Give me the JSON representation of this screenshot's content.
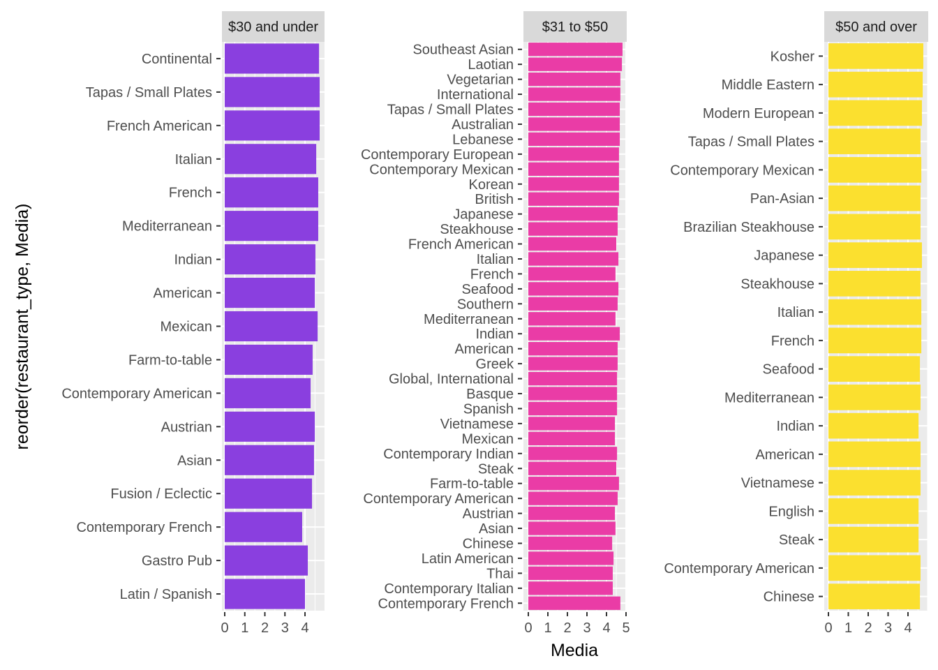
{
  "chart_data": {
    "type": "bar",
    "orientation": "horizontal",
    "xlabel": "Media",
    "ylabel": "reorder(restaurant_type, Media)",
    "grid": true,
    "facets": [
      {
        "title": "$30 and under",
        "color": "#8A3FDF",
        "xlim": [
          0,
          5
        ],
        "xticks": [
          "0",
          "1",
          "2",
          "3",
          "4"
        ],
        "categories": [
          "Continental",
          "Tapas / Small Plates",
          "French American",
          "Italian",
          "French",
          "Mediterranean",
          "Indian",
          "American",
          "Mexican",
          "Farm-to-table",
          "Contemporary American",
          "Austrian",
          "Asian",
          "Fusion / Eclectic",
          "Contemporary French",
          "Gastro Pub",
          "Latin / Spanish"
        ],
        "values": [
          4.7,
          4.73,
          4.73,
          4.56,
          4.66,
          4.66,
          4.52,
          4.49,
          4.63,
          4.38,
          4.28,
          4.49,
          4.45,
          4.35,
          3.86,
          4.14,
          4.0
        ]
      },
      {
        "title": "$31 to $50",
        "color": "#EA3CA6",
        "xlim": [
          0,
          5.2
        ],
        "xticks": [
          "0",
          "1",
          "2",
          "3",
          "4",
          "5"
        ],
        "categories": [
          "Southeast Asian",
          "Laotian",
          "Vegetarian",
          "International",
          "Tapas / Small Plates",
          "Australian",
          "Lebanese",
          "Contemporary European",
          "Contemporary Mexican",
          "Korean",
          "British",
          "Japanese",
          "Steakhouse",
          "French American",
          "Italian",
          "French",
          "Seafood",
          "Southern",
          "Mediterranean",
          "Indian",
          "American",
          "Greek",
          "Global, International",
          "Basque",
          "Spanish",
          "Vietnamese",
          "Mexican",
          "Contemporary Indian",
          "Steak",
          "Farm-to-table",
          "Contemporary American",
          "Austrian",
          "Asian",
          "Chinese",
          "Latin American",
          "Thai",
          "Contemporary Italian",
          "Contemporary French"
        ],
        "values": [
          4.82,
          4.79,
          4.71,
          4.71,
          4.68,
          4.68,
          4.68,
          4.64,
          4.64,
          4.64,
          4.64,
          4.57,
          4.57,
          4.5,
          4.61,
          4.46,
          4.61,
          4.57,
          4.46,
          4.68,
          4.57,
          4.57,
          4.54,
          4.54,
          4.54,
          4.43,
          4.43,
          4.54,
          4.5,
          4.64,
          4.57,
          4.43,
          4.46,
          4.29,
          4.36,
          4.32,
          4.32,
          4.71
        ]
      },
      {
        "title": "$50 and over",
        "color": "#FBE02F",
        "xlim": [
          0,
          5.05
        ],
        "xticks": [
          "0",
          "1",
          "2",
          "3",
          "4"
        ],
        "categories": [
          "Kosher",
          "Middle Eastern",
          "Modern European",
          "Tapas / Small Plates",
          "Contemporary Mexican",
          "Pan-Asian",
          "Brazilian Steakhouse",
          "Japanese",
          "Steakhouse",
          "Italian",
          "French",
          "Seafood",
          "Mediterranean",
          "Indian",
          "American",
          "Vietnamese",
          "English",
          "Steak",
          "Contemporary American",
          "Chinese"
        ],
        "values": [
          4.77,
          4.74,
          4.7,
          4.63,
          4.67,
          4.63,
          4.63,
          4.7,
          4.63,
          4.67,
          4.67,
          4.6,
          4.63,
          4.53,
          4.63,
          4.63,
          4.53,
          4.53,
          4.63,
          4.6
        ]
      }
    ]
  }
}
